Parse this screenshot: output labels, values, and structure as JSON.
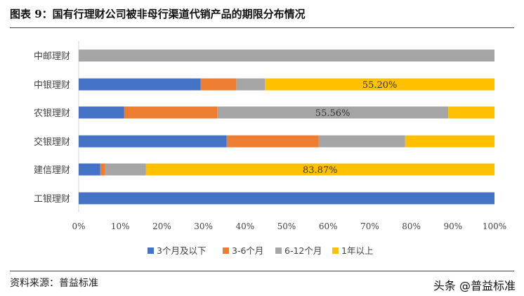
{
  "title": "图表 9：国有行理财公司被非母行渠道代销产品的期限分布情况",
  "source": "资料来源：普益标准",
  "watermark": "头条 @普益标准",
  "chart_data": {
    "type": "bar",
    "orientation": "horizontal",
    "stacked": "percent",
    "categories": [
      "中邮理财",
      "中银理财",
      "农银理财",
      "交银理财",
      "建信理财",
      "工银理财"
    ],
    "series": [
      {
        "name": "3个月及以下",
        "color": "#4472C4",
        "values": [
          0,
          29.3,
          10.9,
          35.6,
          5.2,
          100
        ]
      },
      {
        "name": "3-6个月",
        "color": "#ED7D31",
        "values": [
          0,
          8.6,
          22.4,
          22.1,
          1.1,
          0
        ]
      },
      {
        "name": "6-12个月",
        "color": "#A5A5A5",
        "values": [
          100,
          6.9,
          55.56,
          20.8,
          9.83,
          0
        ]
      },
      {
        "name": "1年以上",
        "color": "#FFC000",
        "values": [
          0,
          55.2,
          11.14,
          21.5,
          83.87,
          0
        ]
      }
    ],
    "data_labels": [
      {
        "category": "中银理财",
        "series": "1年以上",
        "text": "55.20%"
      },
      {
        "category": "农银理财",
        "series": "6-12个月",
        "text": "55.56%"
      },
      {
        "category": "建信理财",
        "series": "1年以上",
        "text": "83.87%"
      }
    ],
    "xlim": [
      0,
      100
    ],
    "xticks": [
      "0%",
      "10%",
      "20%",
      "30%",
      "40%",
      "50%",
      "60%",
      "70%",
      "80%",
      "90%",
      "100%"
    ],
    "grid": false,
    "legend": "bottom"
  }
}
